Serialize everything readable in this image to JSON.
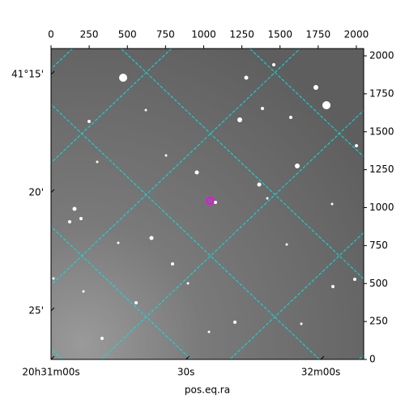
{
  "chart_data": {
    "type": "image",
    "xlabel": "pos.eq.ra",
    "xlim": [
      0,
      2048
    ],
    "ylim": [
      0,
      2048
    ],
    "xticks": [
      0,
      250,
      500,
      750,
      1000,
      1250,
      1500,
      1750,
      2000
    ],
    "yticks": [
      0,
      250,
      500,
      750,
      1000,
      1250,
      1500,
      1750,
      2000
    ],
    "ra_ticks": [
      {
        "value": 0,
        "label": "20h31m00s"
      },
      {
        "value": 884,
        "label": "30s"
      },
      {
        "value": 1767,
        "label": "32m00s"
      }
    ],
    "dec_ticks": [
      {
        "value": 1877,
        "label": "41°15'"
      },
      {
        "value": 1099,
        "label": "20'"
      },
      {
        "value": 320,
        "label": "25'"
      }
    ],
    "marker": {
      "x": 1042,
      "y": 1045,
      "color": "#ff00ff"
    },
    "grid": true,
    "grid_color": "#00e5e5"
  }
}
